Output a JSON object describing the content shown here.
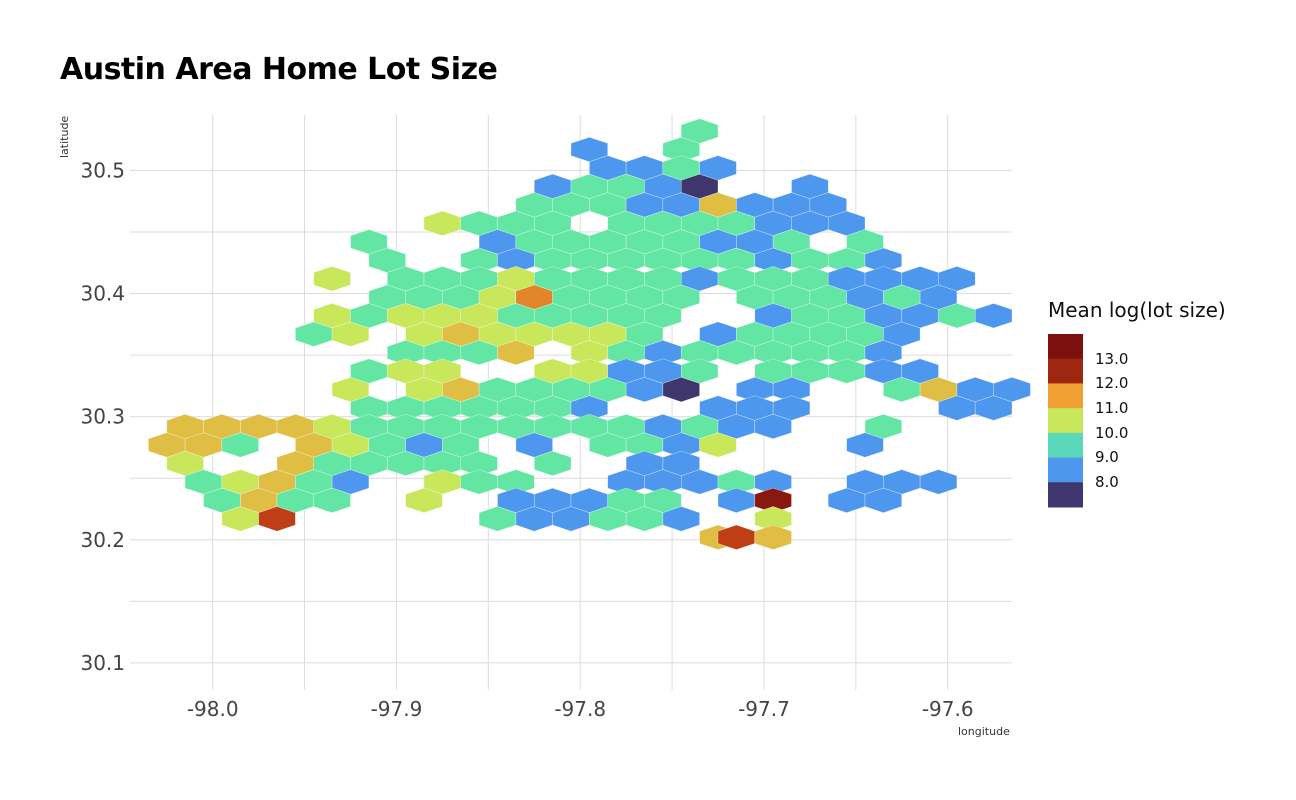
{
  "chart_data": {
    "type": "heatmap",
    "title": "Austin Area Home Lot Size",
    "xlabel": "longitude",
    "ylabel": "latitude",
    "xlim": [
      -98.045,
      -97.565
    ],
    "ylim": [
      30.078,
      30.545
    ],
    "x_ticks": [
      -98.0,
      -97.9,
      -97.8,
      -97.7,
      -97.6
    ],
    "x_tick_labels": [
      "-98.0",
      "-97.9",
      "-97.8",
      "-97.7",
      "-97.6"
    ],
    "y_ticks": [
      30.1,
      30.2,
      30.3,
      30.4,
      30.5
    ],
    "y_tick_labels": [
      "30.1",
      "30.2",
      "30.3",
      "30.4",
      "30.5"
    ],
    "grid": true,
    "legend": {
      "title": "Mean log(lot size)",
      "placement": "right",
      "labels": [
        "13.0",
        "12.0",
        "11.0",
        "10.0",
        "9.0",
        "8.0"
      ],
      "color_stops": [
        {
          "value": 7.5,
          "color": "#3e366c"
        },
        {
          "value": 8.0,
          "color": "#3e366c"
        },
        {
          "value": 8.5,
          "color": "#4a72d8"
        },
        {
          "value": 9.0,
          "color": "#4d97ee"
        },
        {
          "value": 9.5,
          "color": "#4fc3d8"
        },
        {
          "value": 10.0,
          "color": "#63e6a4"
        },
        {
          "value": 10.6,
          "color": "#c9e75a"
        },
        {
          "value": 11.3,
          "color": "#f0a032"
        },
        {
          "value": 12.0,
          "color": "#bf3e15"
        },
        {
          "value": 13.0,
          "color": "#7c100e"
        },
        {
          "value": 13.5,
          "color": "#7c100e"
        }
      ]
    },
    "hexbins": [
      [
        -97.735,
        30.532,
        10.0
      ],
      [
        -97.745,
        30.517,
        10.0
      ],
      [
        -97.795,
        30.517,
        9.0
      ],
      [
        -97.785,
        30.502,
        9.0
      ],
      [
        -97.765,
        30.502,
        9.0
      ],
      [
        -97.745,
        30.502,
        10.0
      ],
      [
        -97.725,
        30.502,
        9.0
      ],
      [
        -97.815,
        30.487,
        9.0
      ],
      [
        -97.795,
        30.487,
        10.0
      ],
      [
        -97.775,
        30.487,
        10.0
      ],
      [
        -97.755,
        30.487,
        9.0
      ],
      [
        -97.735,
        30.487,
        8.0
      ],
      [
        -97.675,
        30.487,
        9.0
      ],
      [
        -97.825,
        30.472,
        10.0
      ],
      [
        -97.805,
        30.472,
        10.0
      ],
      [
        -97.785,
        30.472,
        10.0
      ],
      [
        -97.765,
        30.472,
        9.0
      ],
      [
        -97.745,
        30.472,
        9.0
      ],
      [
        -97.725,
        30.472,
        11.0
      ],
      [
        -97.705,
        30.472,
        9.0
      ],
      [
        -97.685,
        30.472,
        9.0
      ],
      [
        -97.665,
        30.472,
        9.0
      ],
      [
        -97.875,
        30.457,
        10.6
      ],
      [
        -97.855,
        30.457,
        10.0
      ],
      [
        -97.835,
        30.457,
        10.0
      ],
      [
        -97.815,
        30.457,
        10.0
      ],
      [
        -97.775,
        30.457,
        10.0
      ],
      [
        -97.755,
        30.457,
        10.0
      ],
      [
        -97.735,
        30.457,
        10.0
      ],
      [
        -97.715,
        30.457,
        10.0
      ],
      [
        -97.695,
        30.457,
        9.0
      ],
      [
        -97.675,
        30.457,
        9.0
      ],
      [
        -97.655,
        30.457,
        9.0
      ],
      [
        -97.915,
        30.442,
        10.0
      ],
      [
        -97.845,
        30.442,
        9.0
      ],
      [
        -97.825,
        30.442,
        10.0
      ],
      [
        -97.805,
        30.442,
        10.0
      ],
      [
        -97.785,
        30.442,
        10.0
      ],
      [
        -97.765,
        30.442,
        10.0
      ],
      [
        -97.745,
        30.442,
        10.0
      ],
      [
        -97.725,
        30.442,
        9.0
      ],
      [
        -97.705,
        30.442,
        9.0
      ],
      [
        -97.685,
        30.442,
        10.0
      ],
      [
        -97.645,
        30.442,
        10.0
      ],
      [
        -97.905,
        30.427,
        10.0
      ],
      [
        -97.855,
        30.427,
        10.0
      ],
      [
        -97.835,
        30.427,
        9.0
      ],
      [
        -97.815,
        30.427,
        10.0
      ],
      [
        -97.795,
        30.427,
        10.0
      ],
      [
        -97.775,
        30.427,
        10.0
      ],
      [
        -97.755,
        30.427,
        10.0
      ],
      [
        -97.735,
        30.427,
        10.0
      ],
      [
        -97.715,
        30.427,
        10.0
      ],
      [
        -97.695,
        30.427,
        9.0
      ],
      [
        -97.675,
        30.427,
        10.0
      ],
      [
        -97.655,
        30.427,
        10.0
      ],
      [
        -97.635,
        30.427,
        9.0
      ],
      [
        -97.935,
        30.412,
        10.6
      ],
      [
        -97.895,
        30.412,
        10.0
      ],
      [
        -97.875,
        30.412,
        10.0
      ],
      [
        -97.855,
        30.412,
        10.0
      ],
      [
        -97.835,
        30.412,
        10.6
      ],
      [
        -97.815,
        30.412,
        10.0
      ],
      [
        -97.795,
        30.412,
        10.0
      ],
      [
        -97.775,
        30.412,
        10.0
      ],
      [
        -97.755,
        30.412,
        10.0
      ],
      [
        -97.735,
        30.412,
        9.0
      ],
      [
        -97.715,
        30.412,
        10.0
      ],
      [
        -97.695,
        30.412,
        10.0
      ],
      [
        -97.675,
        30.412,
        10.0
      ],
      [
        -97.655,
        30.412,
        9.0
      ],
      [
        -97.635,
        30.412,
        9.0
      ],
      [
        -97.615,
        30.412,
        9.0
      ],
      [
        -97.595,
        30.412,
        9.0
      ],
      [
        -97.905,
        30.397,
        10.0
      ],
      [
        -97.885,
        30.397,
        10.0
      ],
      [
        -97.865,
        30.397,
        10.0
      ],
      [
        -97.845,
        30.397,
        10.6
      ],
      [
        -97.825,
        30.397,
        11.5
      ],
      [
        -97.805,
        30.397,
        10.0
      ],
      [
        -97.785,
        30.397,
        10.0
      ],
      [
        -97.765,
        30.397,
        10.0
      ],
      [
        -97.745,
        30.397,
        10.0
      ],
      [
        -97.705,
        30.397,
        10.0
      ],
      [
        -97.685,
        30.397,
        10.0
      ],
      [
        -97.665,
        30.397,
        10.0
      ],
      [
        -97.645,
        30.397,
        9.0
      ],
      [
        -97.625,
        30.397,
        10.0
      ],
      [
        -97.605,
        30.397,
        9.0
      ],
      [
        -97.935,
        30.382,
        10.6
      ],
      [
        -97.915,
        30.382,
        10.0
      ],
      [
        -97.895,
        30.382,
        10.6
      ],
      [
        -97.875,
        30.382,
        10.6
      ],
      [
        -97.855,
        30.382,
        10.6
      ],
      [
        -97.835,
        30.382,
        10.0
      ],
      [
        -97.815,
        30.382,
        10.0
      ],
      [
        -97.795,
        30.382,
        10.0
      ],
      [
        -97.775,
        30.382,
        10.0
      ],
      [
        -97.755,
        30.382,
        10.0
      ],
      [
        -97.695,
        30.382,
        9.0
      ],
      [
        -97.675,
        30.382,
        10.0
      ],
      [
        -97.655,
        30.382,
        10.0
      ],
      [
        -97.635,
        30.382,
        9.0
      ],
      [
        -97.615,
        30.382,
        9.0
      ],
      [
        -97.595,
        30.382,
        10.0
      ],
      [
        -97.575,
        30.382,
        9.0
      ],
      [
        -97.945,
        30.367,
        10.0
      ],
      [
        -97.925,
        30.367,
        10.6
      ],
      [
        -97.885,
        30.367,
        10.6
      ],
      [
        -97.865,
        30.367,
        11.0
      ],
      [
        -97.845,
        30.367,
        10.6
      ],
      [
        -97.825,
        30.367,
        10.6
      ],
      [
        -97.805,
        30.367,
        10.6
      ],
      [
        -97.785,
        30.367,
        10.6
      ],
      [
        -97.765,
        30.367,
        10.0
      ],
      [
        -97.725,
        30.367,
        9.0
      ],
      [
        -97.705,
        30.367,
        10.0
      ],
      [
        -97.685,
        30.367,
        10.0
      ],
      [
        -97.665,
        30.367,
        10.0
      ],
      [
        -97.645,
        30.367,
        10.0
      ],
      [
        -97.625,
        30.367,
        9.0
      ],
      [
        -97.895,
        30.352,
        10.0
      ],
      [
        -97.875,
        30.352,
        10.0
      ],
      [
        -97.855,
        30.352,
        10.0
      ],
      [
        -97.835,
        30.352,
        11.0
      ],
      [
        -97.795,
        30.352,
        10.6
      ],
      [
        -97.775,
        30.352,
        10.0
      ],
      [
        -97.755,
        30.352,
        9.0
      ],
      [
        -97.735,
        30.352,
        10.0
      ],
      [
        -97.715,
        30.352,
        10.0
      ],
      [
        -97.695,
        30.352,
        10.0
      ],
      [
        -97.675,
        30.352,
        10.0
      ],
      [
        -97.655,
        30.352,
        10.0
      ],
      [
        -97.635,
        30.352,
        9.0
      ],
      [
        -97.915,
        30.337,
        10.0
      ],
      [
        -97.895,
        30.337,
        10.6
      ],
      [
        -97.875,
        30.337,
        10.6
      ],
      [
        -97.815,
        30.337,
        10.6
      ],
      [
        -97.795,
        30.337,
        10.6
      ],
      [
        -97.775,
        30.337,
        9.0
      ],
      [
        -97.755,
        30.337,
        9.0
      ],
      [
        -97.735,
        30.337,
        10.0
      ],
      [
        -97.695,
        30.337,
        10.0
      ],
      [
        -97.675,
        30.337,
        10.0
      ],
      [
        -97.655,
        30.337,
        10.0
      ],
      [
        -97.635,
        30.337,
        9.0
      ],
      [
        -97.615,
        30.337,
        9.0
      ],
      [
        -97.925,
        30.322,
        10.6
      ],
      [
        -97.885,
        30.322,
        10.6
      ],
      [
        -97.865,
        30.322,
        11.0
      ],
      [
        -97.845,
        30.322,
        10.0
      ],
      [
        -97.825,
        30.322,
        10.0
      ],
      [
        -97.805,
        30.322,
        10.0
      ],
      [
        -97.785,
        30.322,
        10.0
      ],
      [
        -97.765,
        30.322,
        9.0
      ],
      [
        -97.745,
        30.322,
        8.0
      ],
      [
        -97.705,
        30.322,
        9.0
      ],
      [
        -97.685,
        30.322,
        9.0
      ],
      [
        -97.625,
        30.322,
        10.0
      ],
      [
        -97.605,
        30.322,
        11.0
      ],
      [
        -97.585,
        30.322,
        9.0
      ],
      [
        -97.565,
        30.322,
        9.0
      ],
      [
        -97.915,
        30.307,
        10.0
      ],
      [
        -97.895,
        30.307,
        10.0
      ],
      [
        -97.875,
        30.307,
        10.0
      ],
      [
        -97.855,
        30.307,
        10.0
      ],
      [
        -97.835,
        30.307,
        10.0
      ],
      [
        -97.815,
        30.307,
        10.0
      ],
      [
        -97.795,
        30.307,
        9.0
      ],
      [
        -97.725,
        30.307,
        9.0
      ],
      [
        -97.705,
        30.307,
        9.0
      ],
      [
        -97.685,
        30.307,
        9.0
      ],
      [
        -97.595,
        30.307,
        9.0
      ],
      [
        -97.575,
        30.307,
        9.0
      ],
      [
        -98.015,
        30.292,
        11.0
      ],
      [
        -97.995,
        30.292,
        11.0
      ],
      [
        -97.975,
        30.292,
        11.0
      ],
      [
        -97.955,
        30.292,
        11.0
      ],
      [
        -97.935,
        30.292,
        10.6
      ],
      [
        -97.915,
        30.292,
        10.0
      ],
      [
        -97.895,
        30.292,
        10.0
      ],
      [
        -97.875,
        30.292,
        10.0
      ],
      [
        -97.855,
        30.292,
        10.0
      ],
      [
        -97.835,
        30.292,
        10.0
      ],
      [
        -97.815,
        30.292,
        10.0
      ],
      [
        -97.795,
        30.292,
        10.0
      ],
      [
        -97.775,
        30.292,
        10.0
      ],
      [
        -97.755,
        30.292,
        9.0
      ],
      [
        -97.735,
        30.292,
        10.0
      ],
      [
        -97.715,
        30.292,
        9.0
      ],
      [
        -97.695,
        30.292,
        9.0
      ],
      [
        -97.635,
        30.292,
        10.0
      ],
      [
        -98.025,
        30.277,
        11.0
      ],
      [
        -98.005,
        30.277,
        11.0
      ],
      [
        -97.985,
        30.277,
        10.0
      ],
      [
        -97.945,
        30.277,
        11.0
      ],
      [
        -97.925,
        30.277,
        10.6
      ],
      [
        -97.905,
        30.277,
        10.0
      ],
      [
        -97.885,
        30.277,
        9.0
      ],
      [
        -97.865,
        30.277,
        10.0
      ],
      [
        -97.825,
        30.277,
        9.0
      ],
      [
        -97.785,
        30.277,
        10.0
      ],
      [
        -97.765,
        30.277,
        10.0
      ],
      [
        -97.745,
        30.277,
        9.0
      ],
      [
        -97.725,
        30.277,
        10.6
      ],
      [
        -97.645,
        30.277,
        9.0
      ],
      [
        -98.015,
        30.262,
        10.6
      ],
      [
        -97.955,
        30.262,
        11.0
      ],
      [
        -97.935,
        30.262,
        10.0
      ],
      [
        -97.915,
        30.262,
        10.0
      ],
      [
        -97.895,
        30.262,
        10.0
      ],
      [
        -97.875,
        30.262,
        10.0
      ],
      [
        -97.855,
        30.262,
        10.0
      ],
      [
        -97.815,
        30.262,
        10.0
      ],
      [
        -97.765,
        30.262,
        9.0
      ],
      [
        -97.745,
        30.262,
        9.0
      ],
      [
        -98.005,
        30.247,
        10.0
      ],
      [
        -97.985,
        30.247,
        10.6
      ],
      [
        -97.965,
        30.247,
        11.0
      ],
      [
        -97.945,
        30.247,
        10.0
      ],
      [
        -97.925,
        30.247,
        9.0
      ],
      [
        -97.875,
        30.247,
        10.6
      ],
      [
        -97.855,
        30.247,
        10.0
      ],
      [
        -97.835,
        30.247,
        10.0
      ],
      [
        -97.775,
        30.247,
        9.0
      ],
      [
        -97.755,
        30.247,
        9.0
      ],
      [
        -97.735,
        30.247,
        9.0
      ],
      [
        -97.715,
        30.247,
        10.0
      ],
      [
        -97.695,
        30.247,
        9.0
      ],
      [
        -97.645,
        30.247,
        9.0
      ],
      [
        -97.625,
        30.247,
        9.0
      ],
      [
        -97.605,
        30.247,
        9.0
      ],
      [
        -97.995,
        30.232,
        10.0
      ],
      [
        -97.975,
        30.232,
        11.0
      ],
      [
        -97.955,
        30.232,
        10.0
      ],
      [
        -97.935,
        30.232,
        10.0
      ],
      [
        -97.885,
        30.232,
        10.6
      ],
      [
        -97.835,
        30.232,
        9.0
      ],
      [
        -97.815,
        30.232,
        9.0
      ],
      [
        -97.795,
        30.232,
        9.0
      ],
      [
        -97.775,
        30.232,
        10.0
      ],
      [
        -97.755,
        30.232,
        10.0
      ],
      [
        -97.715,
        30.232,
        9.0
      ],
      [
        -97.695,
        30.232,
        12.8
      ],
      [
        -97.655,
        30.232,
        9.0
      ],
      [
        -97.635,
        30.232,
        9.0
      ],
      [
        -97.985,
        30.217,
        10.6
      ],
      [
        -97.965,
        30.217,
        12.0
      ],
      [
        -97.845,
        30.217,
        10.0
      ],
      [
        -97.825,
        30.217,
        9.0
      ],
      [
        -97.805,
        30.217,
        9.0
      ],
      [
        -97.785,
        30.217,
        10.0
      ],
      [
        -97.765,
        30.217,
        10.0
      ],
      [
        -97.745,
        30.217,
        9.0
      ],
      [
        -97.695,
        30.217,
        10.6
      ],
      [
        -97.725,
        30.202,
        11.0
      ],
      [
        -97.715,
        30.202,
        12.0
      ],
      [
        -97.695,
        30.202,
        11.0
      ]
    ]
  }
}
